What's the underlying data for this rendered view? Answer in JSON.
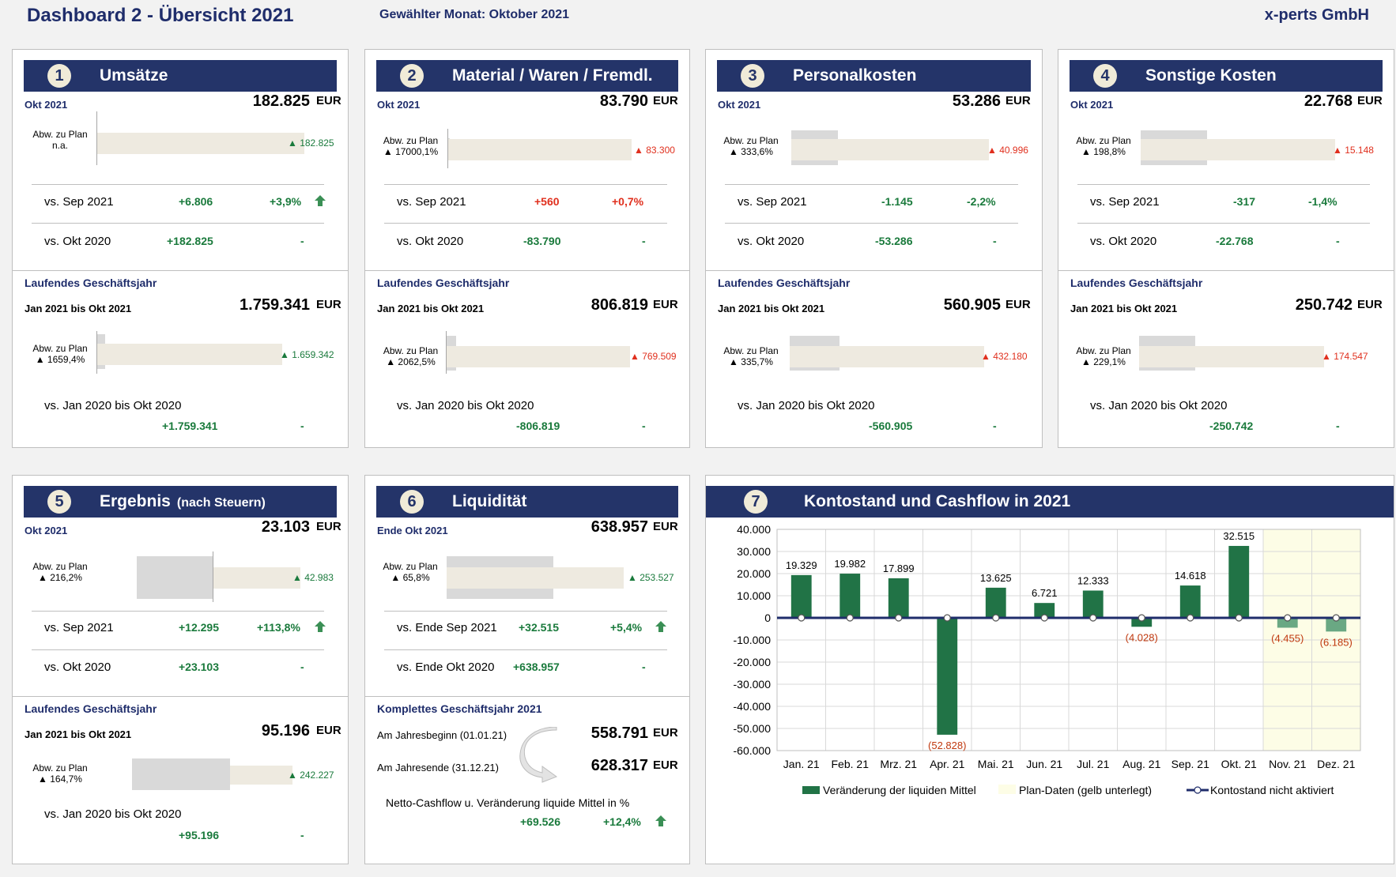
{
  "header": {
    "title": "Dashboard 2 - Übersicht 2021",
    "month_label": "Gewählter Monat: Oktober 2021",
    "company": "x-perts GmbH"
  },
  "colors": {
    "navy": "#243469",
    "green": "#1a7a3c",
    "red": "#e0301e",
    "bar_green": "#217346",
    "bar_green_light": "#6aa883",
    "plan_bg": "#fdfde6"
  },
  "panels": {
    "p1": {
      "num": "1",
      "title": "Umsätze",
      "month": "Okt 2021",
      "value": "182.825",
      "eur": "EUR",
      "abw_line1": "Abw. zu Plan",
      "abw_line2": "n.a.",
      "bar_label": "▲ 182.825",
      "cmp1_label": "vs. Sep 2021",
      "cmp1_abs": "+6.806",
      "cmp1_pct": "+3,9%",
      "cmp2_label": "vs. Okt 2020",
      "cmp2_abs": "+182.825",
      "cmp2_pct": "-",
      "ytd_title": "Laufendes Geschäftsjahr",
      "ytd_range": "Jan 2021 bis Okt 2021",
      "ytd_value": "1.759.341",
      "ytd_eur": "EUR",
      "ytd_abw1": "Abw. zu Plan",
      "ytd_abw2": "▲ 1659,4%",
      "ytd_bar_label": "▲ 1.659.342",
      "ytd_cmp_label": "vs. Jan 2020 bis Okt 2020",
      "ytd_cmp_abs": "+1.759.341",
      "ytd_cmp_pct": "-"
    },
    "p2": {
      "num": "2",
      "title": "Material / Waren / Fremdl.",
      "month": "Okt 2021",
      "value": "83.790",
      "eur": "EUR",
      "abw_line1": "Abw. zu Plan",
      "abw_line2": "▲ 17000,1%",
      "bar_label": "▲ 83.300",
      "cmp1_label": "vs. Sep 2021",
      "cmp1_abs": "+560",
      "cmp1_pct": "+0,7%",
      "cmp2_label": "vs. Okt 2020",
      "cmp2_abs": "-83.790",
      "cmp2_pct": "-",
      "ytd_title": "Laufendes Geschäftsjahr",
      "ytd_range": "Jan 2021 bis Okt 2021",
      "ytd_value": "806.819",
      "ytd_eur": "EUR",
      "ytd_abw1": "Abw. zu Plan",
      "ytd_abw2": "▲ 2062,5%",
      "ytd_bar_label": "▲ 769.509",
      "ytd_cmp_label": "vs. Jan 2020 bis Okt 2020",
      "ytd_cmp_abs": "-806.819",
      "ytd_cmp_pct": "-"
    },
    "p3": {
      "num": "3",
      "title": "Personalkosten",
      "month": "Okt 2021",
      "value": "53.286",
      "eur": "EUR",
      "abw_line1": "Abw. zu Plan",
      "abw_line2": "▲ 333,6%",
      "bar_label": "▲ 40.996",
      "cmp1_label": "vs. Sep 2021",
      "cmp1_abs": "-1.145",
      "cmp1_pct": "-2,2%",
      "cmp2_label": "vs. Okt 2020",
      "cmp2_abs": "-53.286",
      "cmp2_pct": "-",
      "ytd_title": "Laufendes Geschäftsjahr",
      "ytd_range": "Jan 2021 bis Okt 2021",
      "ytd_value": "560.905",
      "ytd_eur": "EUR",
      "ytd_abw1": "Abw. zu Plan",
      "ytd_abw2": "▲ 335,7%",
      "ytd_bar_label": "▲ 432.180",
      "ytd_cmp_label": "vs. Jan 2020 bis Okt 2020",
      "ytd_cmp_abs": "-560.905",
      "ytd_cmp_pct": "-"
    },
    "p4": {
      "num": "4",
      "title": "Sonstige Kosten",
      "month": "Okt 2021",
      "value": "22.768",
      "eur": "EUR",
      "abw_line1": "Abw. zu Plan",
      "abw_line2": "▲ 198,8%",
      "bar_label": "▲ 15.148",
      "cmp1_label": "vs. Sep 2021",
      "cmp1_abs": "-317",
      "cmp1_pct": "-1,4%",
      "cmp2_label": "vs. Okt 2020",
      "cmp2_abs": "-22.768",
      "cmp2_pct": "-",
      "ytd_title": "Laufendes Geschäftsjahr",
      "ytd_range": "Jan 2021 bis Okt 2021",
      "ytd_value": "250.742",
      "ytd_eur": "EUR",
      "ytd_abw1": "Abw. zu Plan",
      "ytd_abw2": "▲ 229,1%",
      "ytd_bar_label": "▲ 174.547",
      "ytd_cmp_label": "vs. Jan 2020 bis Okt 2020",
      "ytd_cmp_abs": "-250.742",
      "ytd_cmp_pct": "-"
    },
    "p5": {
      "num": "5",
      "title": "Ergebnis",
      "title_sub": "(nach Steuern)",
      "month": "Okt 2021",
      "value": "23.103",
      "eur": "EUR",
      "abw_line1": "Abw. zu Plan",
      "abw_line2": "▲ 216,2%",
      "bar_label": "▲ 42.983",
      "cmp1_label": "vs. Sep 2021",
      "cmp1_abs": "+12.295",
      "cmp1_pct": "+113,8%",
      "cmp2_label": "vs. Okt 2020",
      "cmp2_abs": "+23.103",
      "cmp2_pct": "-",
      "ytd_title": "Laufendes Geschäftsjahr",
      "ytd_range": "Jan 2021 bis Okt 2021",
      "ytd_value": "95.196",
      "ytd_eur": "EUR",
      "ytd_abw1": "Abw. zu Plan",
      "ytd_abw2": "▲ 164,7%",
      "ytd_bar_label": "▲ 242.227",
      "ytd_cmp_label": "vs. Jan 2020 bis Okt 2020",
      "ytd_cmp_abs": "+95.196",
      "ytd_cmp_pct": "-"
    },
    "p6": {
      "num": "6",
      "title": "Liquidität",
      "month": "Ende Okt 2021",
      "value": "638.957",
      "eur": "EUR",
      "abw_line1": "Abw. zu Plan",
      "abw_line2": "▲ 65,8%",
      "bar_label": "▲ 253.527",
      "cmp1_label": "vs. Ende Sep 2021",
      "cmp1_abs": "+32.515",
      "cmp1_pct": "+5,4%",
      "cmp2_label": "vs. Ende Okt 2020",
      "cmp2_abs": "+638.957",
      "cmp2_pct": "-",
      "full_title": "Komplettes Geschäftsjahr 2021",
      "start_label": "Am Jahresbeginn (01.01.21)",
      "start_value": "558.791",
      "start_eur": "EUR",
      "end_label": "Am Jahresende (31.12.21)",
      "end_value": "628.317",
      "end_eur": "EUR",
      "net_label": "Netto-Cashflow u. Veränderung liquide Mittel in %",
      "net_abs": "+69.526",
      "net_pct": "+12,4%"
    },
    "p7": {
      "num": "7",
      "title": "Kontostand und Cashflow in 2021"
    }
  },
  "chart_data": {
    "type": "bar",
    "title": "Kontostand und Cashflow in 2021",
    "categories": [
      "Jan. 21",
      "Feb. 21",
      "Mrz. 21",
      "Apr. 21",
      "Mai. 21",
      "Jun. 21",
      "Jul. 21",
      "Aug. 21",
      "Sep. 21",
      "Okt. 21",
      "Nov. 21",
      "Dez. 21"
    ],
    "series": [
      {
        "name": "Veränderung der liquiden Mittel",
        "values": [
          19329,
          19982,
          17899,
          -52828,
          13625,
          6721,
          12333,
          -4028,
          14618,
          32515,
          -4455,
          -6185
        ]
      },
      {
        "name": "Kontostand nicht aktiviert",
        "values": [
          0,
          0,
          0,
          0,
          0,
          0,
          0,
          0,
          0,
          0,
          0,
          0
        ]
      }
    ],
    "data_labels": [
      "19.329",
      "19.982",
      "17.899",
      "(52.828)",
      "13.625",
      "6.721",
      "12.333",
      "(4.028)",
      "14.618",
      "32.515",
      "(4.455)",
      "(6.185)"
    ],
    "plan_months": [
      "Nov. 21",
      "Dez. 21"
    ],
    "plan_legend": "Plan-Daten (gelb unterlegt)",
    "ylim": [
      -60000,
      40000
    ],
    "yticks": [
      "40.000",
      "30.000",
      "20.000",
      "10.000",
      "0",
      "-10.000",
      "-20.000",
      "-30.000",
      "-40.000",
      "-50.000",
      "-60.000"
    ],
    "grid": true,
    "legend_position": "bottom"
  }
}
